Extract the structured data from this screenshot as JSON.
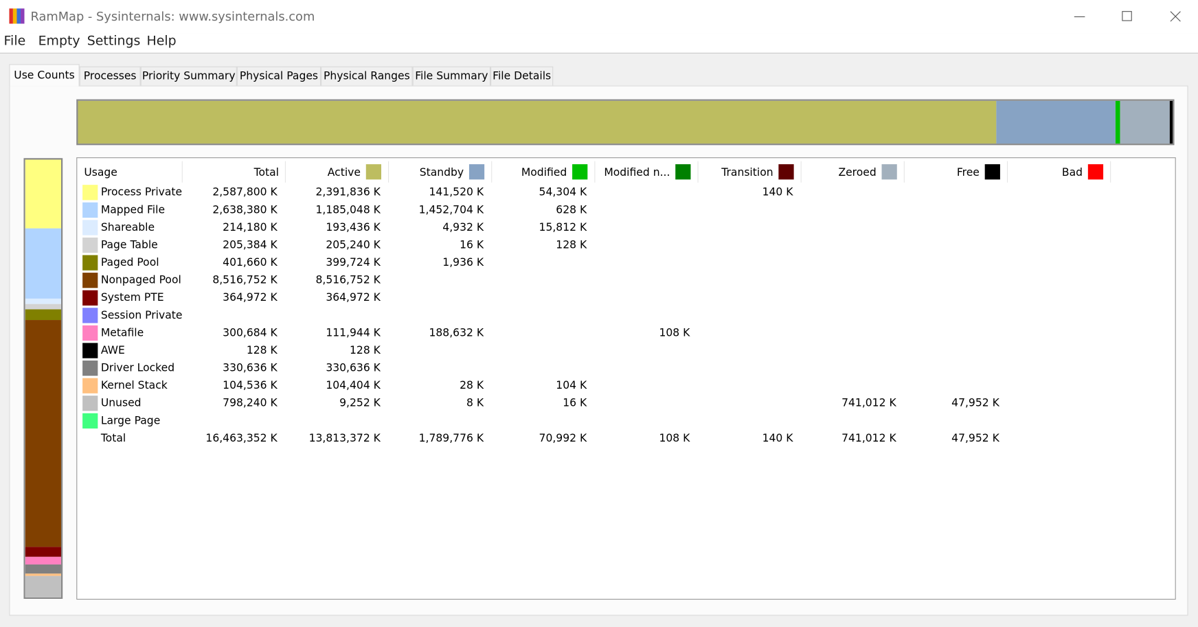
{
  "window": {
    "title": "RamMap - Sysinternals: www.sysinternals.com"
  },
  "menu": [
    "File",
    "Empty",
    "Settings",
    "Help"
  ],
  "tabs": [
    "Use Counts",
    "Processes",
    "Priority Summary",
    "Physical Pages",
    "Physical Ranges",
    "File Summary",
    "File Details"
  ],
  "selected_tab": 0,
  "table": {
    "columns": [
      {
        "label": "Usage",
        "color": null
      },
      {
        "label": "Total",
        "color": null
      },
      {
        "label": "Active",
        "color": "#bdbd60"
      },
      {
        "label": "Standby",
        "color": "#87a3c4"
      },
      {
        "label": "Modified",
        "color": "#00c000"
      },
      {
        "label": "Modified n...",
        "color": "#008000"
      },
      {
        "label": "Transition",
        "color": "#600000"
      },
      {
        "label": "Zeroed",
        "color": "#a2b0bd"
      },
      {
        "label": "Free",
        "color": "#000000"
      },
      {
        "label": "Bad",
        "color": "#ff0000"
      }
    ],
    "rows": [
      {
        "label": "Process Private",
        "color": "#ffff80",
        "cells": [
          "2,587,800 K",
          "2,391,836 K",
          "141,520 K",
          "54,304 K",
          null,
          "140 K",
          null,
          null,
          null
        ]
      },
      {
        "label": "Mapped File",
        "color": "#b0d4ff",
        "cells": [
          "2,638,380 K",
          "1,185,048 K",
          "1,452,704 K",
          "628 K",
          null,
          null,
          null,
          null,
          null
        ]
      },
      {
        "label": "Shareable",
        "color": "#dcecff",
        "cells": [
          "214,180 K",
          "193,436 K",
          "4,932 K",
          "15,812 K",
          null,
          null,
          null,
          null,
          null
        ]
      },
      {
        "label": "Page Table",
        "color": "#d3d3d3",
        "cells": [
          "205,384 K",
          "205,240 K",
          "16 K",
          "128 K",
          null,
          null,
          null,
          null,
          null
        ]
      },
      {
        "label": "Paged Pool",
        "color": "#808000",
        "cells": [
          "401,660 K",
          "399,724 K",
          "1,936 K",
          null,
          null,
          null,
          null,
          null,
          null
        ]
      },
      {
        "label": "Nonpaged Pool",
        "color": "#804000",
        "cells": [
          "8,516,752 K",
          "8,516,752 K",
          null,
          null,
          null,
          null,
          null,
          null,
          null
        ]
      },
      {
        "label": "System PTE",
        "color": "#800000",
        "cells": [
          "364,972 K",
          "364,972 K",
          null,
          null,
          null,
          null,
          null,
          null,
          null
        ]
      },
      {
        "label": "Session Private",
        "color": "#8080ff",
        "cells": [
          null,
          null,
          null,
          null,
          null,
          null,
          null,
          null,
          null
        ]
      },
      {
        "label": "Metafile",
        "color": "#ff80c0",
        "cells": [
          "300,684 K",
          "111,944 K",
          "188,632 K",
          null,
          "108 K",
          null,
          null,
          null,
          null
        ]
      },
      {
        "label": "AWE",
        "color": "#000000",
        "cells": [
          "128 K",
          "128 K",
          null,
          null,
          null,
          null,
          null,
          null,
          null
        ]
      },
      {
        "label": "Driver Locked",
        "color": "#808080",
        "cells": [
          "330,636 K",
          "330,636 K",
          null,
          null,
          null,
          null,
          null,
          null,
          null
        ]
      },
      {
        "label": "Kernel Stack",
        "color": "#ffc080",
        "cells": [
          "104,536 K",
          "104,404 K",
          "28 K",
          "104 K",
          null,
          null,
          null,
          null,
          null
        ]
      },
      {
        "label": "Unused",
        "color": "#c0c0c0",
        "cells": [
          "798,240 K",
          "9,252 K",
          "8 K",
          "16 K",
          null,
          null,
          "741,012 K",
          "47,952 K",
          null
        ]
      },
      {
        "label": "Large Page",
        "color": "#40ff80",
        "cells": [
          null,
          null,
          null,
          null,
          null,
          null,
          null,
          null,
          null
        ]
      },
      {
        "label": "Total",
        "color": null,
        "cells": [
          "16,463,352 K",
          "13,813,372 K",
          "1,789,776 K",
          "70,992 K",
          "108 K",
          "140 K",
          "741,012 K",
          "47,952 K",
          null
        ]
      }
    ]
  }
}
